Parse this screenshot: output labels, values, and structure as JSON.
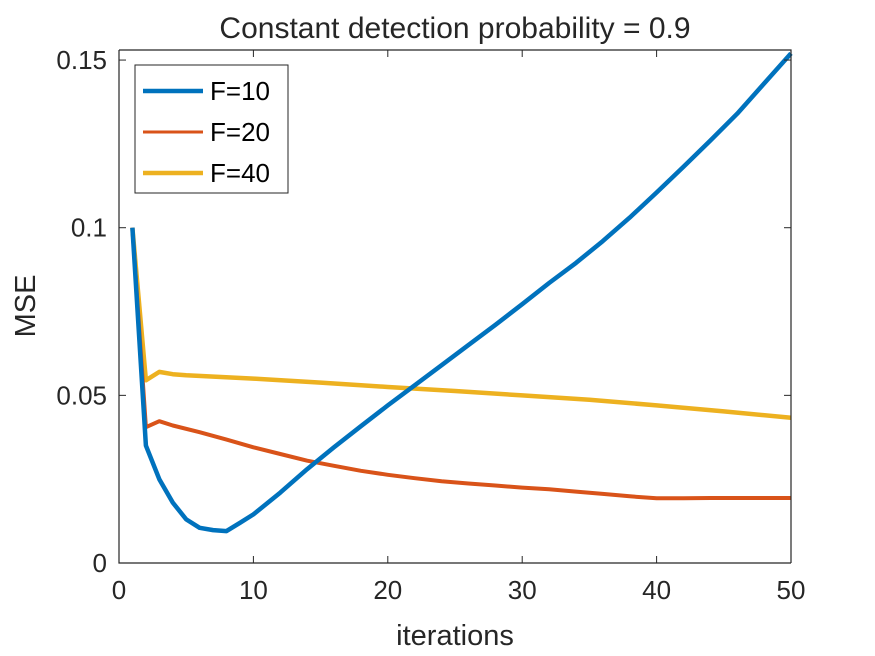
{
  "chart_data": {
    "type": "line",
    "title": "Constant detection probability = 0.9",
    "xlabel": "iterations",
    "ylabel": "MSE",
    "xlim": [
      0,
      50
    ],
    "ylim": [
      0,
      0.153
    ],
    "xticks": [
      0,
      10,
      20,
      30,
      40,
      50
    ],
    "xtick_labels": [
      "0",
      "10",
      "20",
      "30",
      "40",
      "50"
    ],
    "yticks": [
      0,
      0.05,
      0.1,
      0.15
    ],
    "ytick_labels": [
      "0",
      "0.05",
      "0.1",
      "0.15"
    ],
    "grid": false,
    "legend_position": "top-left",
    "series": [
      {
        "name": "F=10",
        "color": "#0072BD",
        "x": [
          1,
          2,
          3,
          4,
          5,
          6,
          7,
          8,
          9,
          10,
          12,
          14,
          16,
          18,
          20,
          22,
          24,
          26,
          28,
          30,
          32,
          34,
          36,
          38,
          40,
          42,
          44,
          46,
          48,
          50
        ],
        "values": [
          0.1,
          0.035,
          0.025,
          0.018,
          0.013,
          0.0105,
          0.0098,
          0.0095,
          0.012,
          0.0145,
          0.021,
          0.028,
          0.0345,
          0.0408,
          0.047,
          0.053,
          0.059,
          0.065,
          0.071,
          0.0772,
          0.0835,
          0.0895,
          0.096,
          0.103,
          0.1105,
          0.1182,
          0.126,
          0.134,
          0.143,
          0.152
        ]
      },
      {
        "name": "F=20",
        "color": "#D95319",
        "x": [
          1,
          2,
          3,
          4,
          6,
          8,
          10,
          12,
          14,
          16,
          18,
          20,
          22,
          24,
          26,
          28,
          30,
          32,
          34,
          36,
          38,
          40,
          42,
          44,
          46,
          48,
          50
        ],
        "values": [
          0.1,
          0.0405,
          0.0423,
          0.041,
          0.039,
          0.0368,
          0.0345,
          0.0325,
          0.0305,
          0.029,
          0.0275,
          0.0263,
          0.0253,
          0.0244,
          0.0237,
          0.0231,
          0.0225,
          0.022,
          0.0213,
          0.0206,
          0.0199,
          0.0193,
          0.0193,
          0.0194,
          0.0194,
          0.0194,
          0.0194
        ]
      },
      {
        "name": "F=40",
        "color": "#EDB120",
        "x": [
          1,
          2,
          3,
          4,
          5,
          10,
          15,
          20,
          25,
          30,
          35,
          40,
          45,
          50
        ],
        "values": [
          0.1,
          0.0545,
          0.057,
          0.0563,
          0.056,
          0.055,
          0.0538,
          0.0525,
          0.0513,
          0.05,
          0.0487,
          0.047,
          0.0452,
          0.0433
        ]
      }
    ]
  }
}
